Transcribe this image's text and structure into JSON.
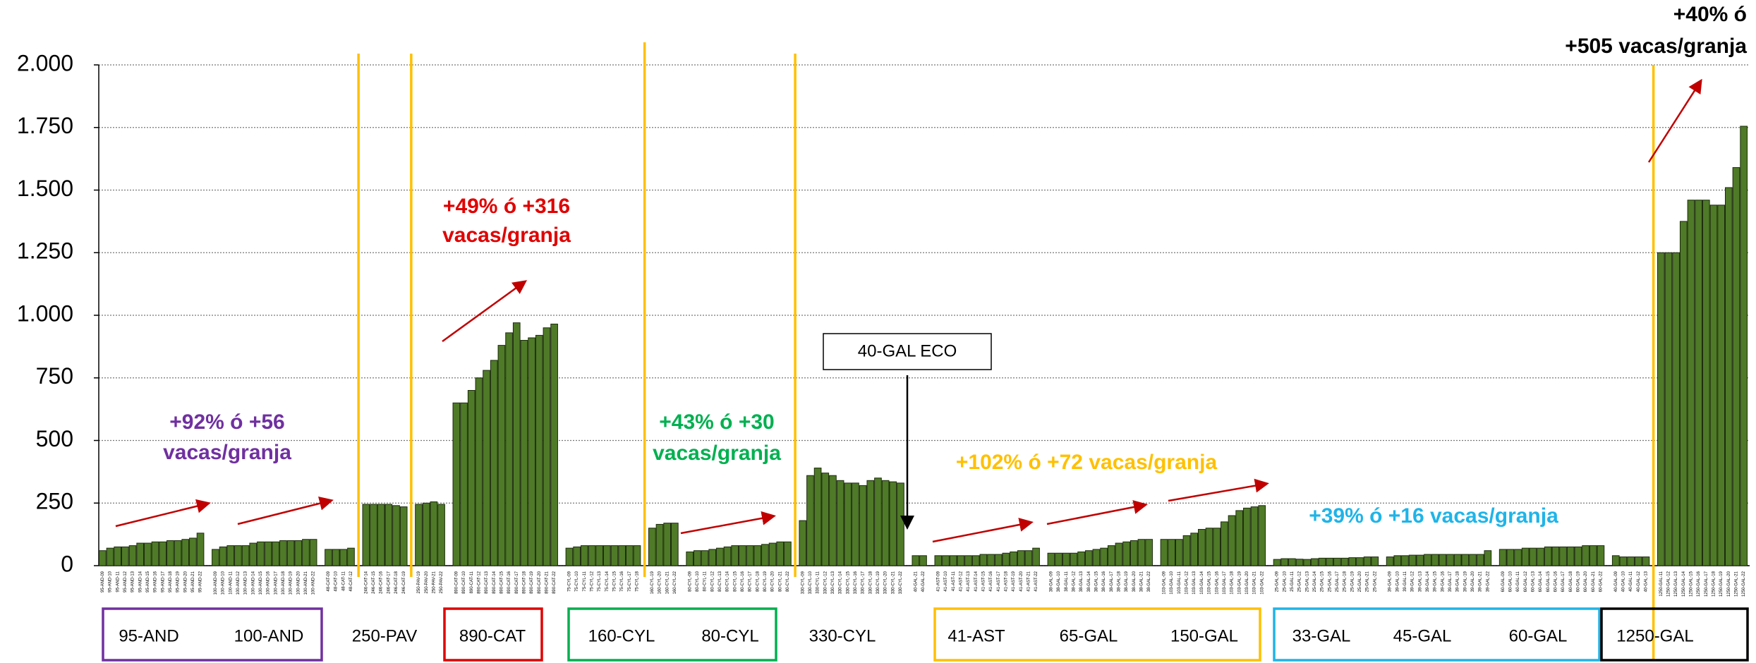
{
  "chart_data": {
    "type": "bar",
    "color": "#4f7a28",
    "ylim": [
      0,
      2000
    ],
    "yticks": [
      0,
      250,
      500,
      750,
      {
        "value": 1000,
        "label": "1.000"
      },
      {
        "value": 1250,
        "label": "1.250"
      },
      {
        "value": 1500,
        "label": "1.500"
      },
      {
        "value": 1750,
        "label": "1.750"
      },
      {
        "value": 2000,
        "label": "2.000"
      }
    ],
    "grid": true,
    "groups": [
      {
        "categories": [
          "95-AND-09",
          "95-AND-10",
          "95-AND-11",
          "95-AND-12",
          "95-AND-13",
          "95-AND-14",
          "95-AND-15",
          "95-AND-16",
          "95-AND-17",
          "95-AND-18",
          "95-AND-19",
          "95-AND-20",
          "95-AND-21",
          "95-AND-22"
        ],
        "values": [
          60,
          70,
          75,
          75,
          80,
          90,
          90,
          95,
          95,
          100,
          100,
          105,
          110,
          130
        ]
      },
      {
        "categories": [
          "100-AND-09",
          "100-AND-10",
          "100-AND-11",
          "100-AND-12",
          "100-AND-13",
          "100-AND-14",
          "100-AND-15",
          "100-AND-16",
          "100-AND-17",
          "100-AND-18",
          "100-AND-19",
          "100-AND-20",
          "100-AND-21",
          "100-AND-22"
        ],
        "values": [
          65,
          75,
          80,
          80,
          80,
          90,
          95,
          95,
          95,
          100,
          100,
          100,
          105,
          105
        ]
      },
      {
        "categories": [
          "48-CAT-09",
          "48-CAT-10",
          "48-CAT-11",
          "48-CAT-12"
        ],
        "values": [
          65,
          65,
          65,
          70
        ]
      },
      {
        "categories": [
          "246-CAT-14",
          "246-CAT-15",
          "246-CAT-16",
          "246-CAT-17",
          "246-CAT-18",
          "246-CAT-19"
        ],
        "values": [
          245,
          245,
          245,
          245,
          240,
          235
        ]
      },
      {
        "categories": [
          "250-PAV-19",
          "250-PAV-20",
          "250-PAV-21",
          "250-PAV-22"
        ],
        "values": [
          245,
          250,
          255,
          245
        ]
      },
      {
        "categories": [
          "890-CAT-09",
          "890-CAT-10",
          "890-CAT-11",
          "890-CAT-12",
          "890-CAT-13",
          "890-CAT-14",
          "890-CAT-15",
          "890-CAT-16",
          "890-CAT-17",
          "890-CAT-18",
          "890-CAT-19",
          "890-CAT-20",
          "890-CAT-21",
          "890-CAT-22"
        ],
        "values": [
          650,
          650,
          700,
          750,
          780,
          820,
          880,
          930,
          970,
          900,
          910,
          920,
          950,
          965
        ]
      },
      {
        "categories": [
          "75-CYL-09",
          "75-CYL-10",
          "75-CYL-11",
          "75-CYL-12",
          "75-CYL-13",
          "75-CYL-14",
          "75-CYL-15",
          "75-CYL-16",
          "75-CYL-17",
          "75-CYL-18"
        ],
        "values": [
          70,
          75,
          80,
          80,
          80,
          80,
          80,
          80,
          80,
          80
        ]
      },
      {
        "categories": [
          "160-CYL-19",
          "160-CYL-20",
          "160-CYL-21",
          "160-CYL-22"
        ],
        "values": [
          150,
          165,
          170,
          170
        ]
      },
      {
        "categories": [
          "80-CYL-09",
          "80-CYL-10",
          "80-CYL-11",
          "80-CYL-12",
          "80-CYL-13",
          "80-CYL-14",
          "80-CYL-15",
          "80-CYL-16",
          "80-CYL-17",
          "80-CYL-18",
          "80-CYL-19",
          "80-CYL-20",
          "80-CYL-21",
          "80-CYL-22"
        ],
        "values": [
          55,
          60,
          60,
          65,
          70,
          75,
          80,
          80,
          80,
          80,
          85,
          90,
          95,
          95
        ]
      },
      {
        "categories": [
          "330-CYL-09",
          "330-CYL-10",
          "330-CYL-11",
          "330-CYL-12",
          "330-CYL-13",
          "330-CYL-14",
          "330-CYL-15",
          "330-CYL-16",
          "330-CYL-17",
          "330-CYL-18",
          "330-CYL-19",
          "330-CYL-20",
          "330-CYL-21",
          "330-CYL-22"
        ],
        "values": [
          180,
          360,
          390,
          370,
          360,
          340,
          330,
          330,
          320,
          340,
          350,
          340,
          335,
          330
        ]
      },
      {
        "categories": [
          "40-GAL-21",
          "40-GAL-22"
        ],
        "values": [
          40,
          40
        ]
      },
      {
        "categories": [
          "41-AST-09",
          "41-AST-10",
          "41-AST-11",
          "41-AST-12",
          "41-AST-13",
          "41-AST-14",
          "41-AST-15",
          "41-AST-16",
          "41-AST-17",
          "41-AST-18",
          "41-AST-19",
          "41-AST-20",
          "41-AST-21",
          "41-AST-22"
        ],
        "values": [
          40,
          40,
          40,
          40,
          40,
          40,
          45,
          45,
          45,
          50,
          55,
          60,
          60,
          70
        ]
      },
      {
        "categories": [
          "38-GAL-09",
          "38-GAL-10",
          "38-GAL-11",
          "38-GAL-12",
          "38-GAL-13",
          "38-GAL-14",
          "38-GAL-15",
          "38-GAL-16",
          "38-GAL-17",
          "38-GAL-18",
          "38-GAL-19",
          "38-GAL-20",
          "38-GAL-21",
          "38-GAL-22"
        ],
        "values": [
          50,
          50,
          50,
          50,
          55,
          60,
          65,
          70,
          80,
          90,
          95,
          100,
          105,
          105
        ]
      },
      {
        "categories": [
          "103-GAL-09",
          "103-GAL-10",
          "103-GAL-11",
          "103-GAL-12",
          "103-GAL-13",
          "103-GAL-14",
          "103-GAL-15",
          "103-GAL-16",
          "103-GAL-17",
          "103-GAL-18",
          "103-GAL-19",
          "103-GAL-20",
          "103-GAL-21",
          "103-GAL-22"
        ],
        "values": [
          105,
          105,
          105,
          120,
          130,
          145,
          150,
          150,
          175,
          200,
          220,
          230,
          235,
          240
        ]
      },
      {
        "categories": [
          "25-GAL-09",
          "25-GAL-10",
          "25-GAL-11",
          "25-GAL-12",
          "25-GAL-13",
          "25-GAL-14",
          "25-GAL-15",
          "25-GAL-16",
          "25-GAL-17",
          "25-GAL-18",
          "25-GAL-19",
          "25-GAL-20",
          "25-GAL-21",
          "25-GAL-22"
        ],
        "values": [
          25,
          28,
          28,
          26,
          25,
          28,
          30,
          30,
          30,
          30,
          32,
          32,
          35,
          35
        ]
      },
      {
        "categories": [
          "39-GAL-09",
          "39-GAL-10",
          "39-GAL-11",
          "39-GAL-12",
          "39-GAL-13",
          "39-GAL-14",
          "39-GAL-15",
          "39-GAL-16",
          "39-GAL-17",
          "39-GAL-18",
          "39-GAL-19",
          "39-GAL-20",
          "39-GAL-21",
          "39-GAL-22"
        ],
        "values": [
          35,
          40,
          40,
          42,
          42,
          45,
          45,
          45,
          45,
          45,
          45,
          45,
          45,
          60
        ]
      },
      {
        "categories": [
          "60-GAL-09",
          "60-GAL-10",
          "60-GAL-11",
          "60-GAL-12",
          "60-GAL-13",
          "60-GAL-14",
          "60-GAL-15",
          "60-GAL-16",
          "60-GAL-17",
          "60-GAL-18",
          "60-GAL-19",
          "60-GAL-20",
          "60-GAL-21",
          "60-GAL-22"
        ],
        "values": [
          65,
          65,
          65,
          70,
          70,
          70,
          75,
          75,
          75,
          75,
          75,
          80,
          80,
          80
        ]
      },
      {
        "categories": [
          "40-GAL-09",
          "40-GAL-10",
          "40-GAL-11",
          "40-GAL-12",
          "40-GAL-13"
        ],
        "values": [
          40,
          35,
          35,
          35,
          35
        ]
      },
      {
        "categories": [
          "1250-GAL-11",
          "1250-GAL-12",
          "1250-GAL-13",
          "1250-GAL-14",
          "1250-GAL-15",
          "1250-GAL-16",
          "1250-GAL-17",
          "1250-GAL-18",
          "1250-GAL-19",
          "1250-GAL-20",
          "1250-GAL-21",
          "1250-GAL-22"
        ],
        "values": [
          1250,
          1250,
          1250,
          1375,
          1460,
          1460,
          1460,
          1440,
          1440,
          1510,
          1590,
          1755
        ]
      }
    ],
    "annotations": [
      {
        "lines": [
          "+92% ó +56",
          "vacas/granja"
        ],
        "color": "#7030a0"
      },
      {
        "lines": [
          "+49% ó +316",
          "vacas/granja"
        ],
        "color": "#e00000"
      },
      {
        "lines": [
          "+43% ó +30",
          "vacas/granja"
        ],
        "color": "#00b050"
      },
      {
        "lines": [
          "+102% ó +72 vacas/granja"
        ],
        "color": "#ffc000"
      },
      {
        "lines": [
          "+39% ó +16 vacas/granja"
        ],
        "color": "#1fb4e8"
      },
      {
        "lines": [
          "+40% ó",
          "+505 vacas/granja"
        ],
        "color": "#000000"
      }
    ],
    "callout": "40-GAL ECO",
    "boxes": [
      {
        "color": "#7030a0",
        "labels": [
          "95-AND",
          "100-AND"
        ]
      },
      {
        "labels": [
          "250-PAV"
        ]
      },
      {
        "color": "#e00000",
        "labels": [
          "890-CAT"
        ]
      },
      {
        "color": "#00b050",
        "labels": [
          "160-CYL",
          "80-CYL"
        ]
      },
      {
        "labels": [
          "330-CYL"
        ]
      },
      {
        "color": "#ffc000",
        "labels": [
          "41-AST",
          "65-GAL",
          "150-GAL"
        ]
      },
      {
        "color": "#1fb4e8",
        "labels": [
          "33-GAL",
          "45-GAL",
          "60-GAL"
        ]
      },
      {
        "color": "#000000",
        "labels": [
          "1250-GAL"
        ]
      }
    ]
  }
}
